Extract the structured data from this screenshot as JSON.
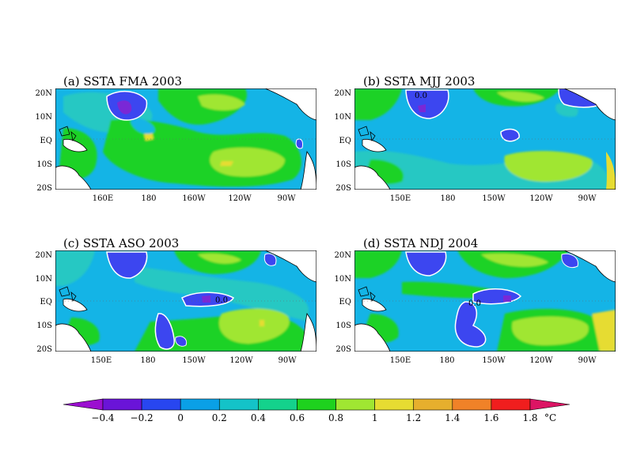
{
  "panels": [
    {
      "id": "a",
      "title": "(a) SSTA FMA 2003",
      "xticks": [
        "160E",
        "180",
        "160W",
        "120W",
        "90W"
      ],
      "yticks": [
        "20N",
        "10N",
        "EQ",
        "10S",
        "20S"
      ],
      "contour_labels": []
    },
    {
      "id": "b",
      "title": "(b) SSTA MJJ 2003",
      "xticks": [
        "150E",
        "180",
        "150W",
        "120W",
        "90W"
      ],
      "yticks": [
        "20N",
        "10N",
        "EQ",
        "10S",
        "20S"
      ],
      "contour_labels": [
        "0.0"
      ]
    },
    {
      "id": "c",
      "title": "(c) SSTA ASO 2003",
      "xticks": [
        "150E",
        "180",
        "150W",
        "120W",
        "90W"
      ],
      "yticks": [
        "20N",
        "10N",
        "EQ",
        "10S",
        "20S"
      ],
      "contour_labels": [
        "0.0"
      ]
    },
    {
      "id": "d",
      "title": "(d) SSTA NDJ 2004",
      "xticks": [
        "150E",
        "180",
        "150W",
        "120W",
        "90W"
      ],
      "yticks": [
        "20N",
        "10N",
        "EQ",
        "10S",
        "20S"
      ],
      "contour_labels": [
        "0.0"
      ]
    }
  ],
  "colorbar": {
    "labels": [
      "-0.4",
      "-0.2",
      "0",
      "0.2",
      "0.4",
      "0.6",
      "0.8",
      "1",
      "1.2",
      "1.4",
      "1.6",
      "1.8"
    ],
    "unit": "°C",
    "colors": [
      "#9b0fd0",
      "#6a14d8",
      "#2846f0",
      "#0aa0e6",
      "#14c3c8",
      "#14d28c",
      "#1ed21e",
      "#a0e632",
      "#e6dc32",
      "#e6af2d",
      "#f08228",
      "#f01e1e",
      "#dc1464"
    ]
  },
  "palette": {
    "land": "#ffffff",
    "coast": "#000000",
    "contour": "#ffffff",
    "purple": "#7a28d6",
    "blue": "#3c46f0",
    "lightblue": "#14b4e6",
    "teal": "#28c8c3",
    "green": "#1ed228",
    "ygreen": "#a0e632",
    "yellow": "#e6dc32",
    "orange": "#e6af2d"
  }
}
